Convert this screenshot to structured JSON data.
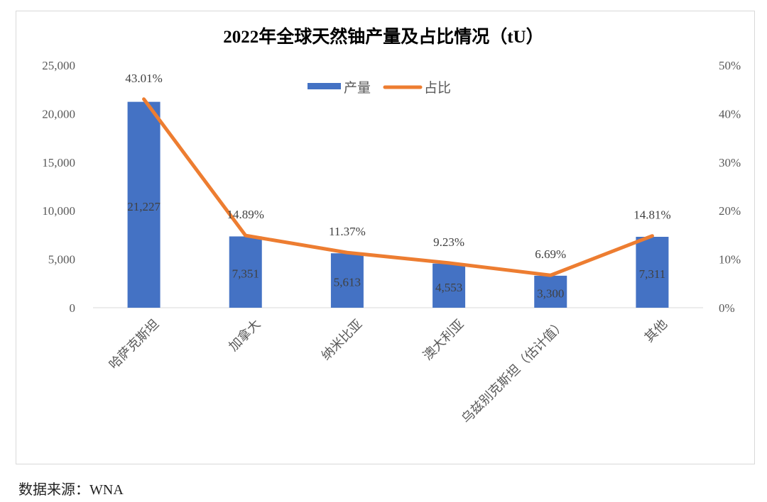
{
  "chart_data": {
    "type": "bar+line",
    "title": "2022年全球天然铀产量及占比情况（tU）",
    "categories": [
      "哈萨克斯坦",
      "加拿大",
      "纳米比亚",
      "澳大利亚",
      "乌兹别克斯坦（估计值）",
      "其他"
    ],
    "series": [
      {
        "name": "产量",
        "type": "bar",
        "axis": "left",
        "color": "#4472C4",
        "values": [
          21227,
          7351,
          5613,
          4553,
          3300,
          7311
        ],
        "labels": [
          "21,227",
          "7,351",
          "5,613",
          "4,553",
          "3,300",
          "7,311"
        ]
      },
      {
        "name": "占比",
        "type": "line",
        "axis": "right",
        "color": "#ED7D31",
        "values": [
          43.01,
          14.89,
          11.37,
          9.23,
          6.69,
          14.81
        ],
        "labels": [
          "43.01%",
          "14.89%",
          "11.37%",
          "9.23%",
          "6.69%",
          "14.81%"
        ]
      }
    ],
    "y_left": {
      "range": [
        0,
        25000
      ],
      "ticks": [
        "0",
        "5,000",
        "10,000",
        "15,000",
        "20,000",
        "25,000"
      ]
    },
    "y_right": {
      "range": [
        0,
        50
      ],
      "ticks": [
        "0%",
        "10%",
        "20%",
        "30%",
        "40%",
        "50%"
      ]
    },
    "legend_position": "top",
    "grid": false
  },
  "source": "数据来源：WNA"
}
